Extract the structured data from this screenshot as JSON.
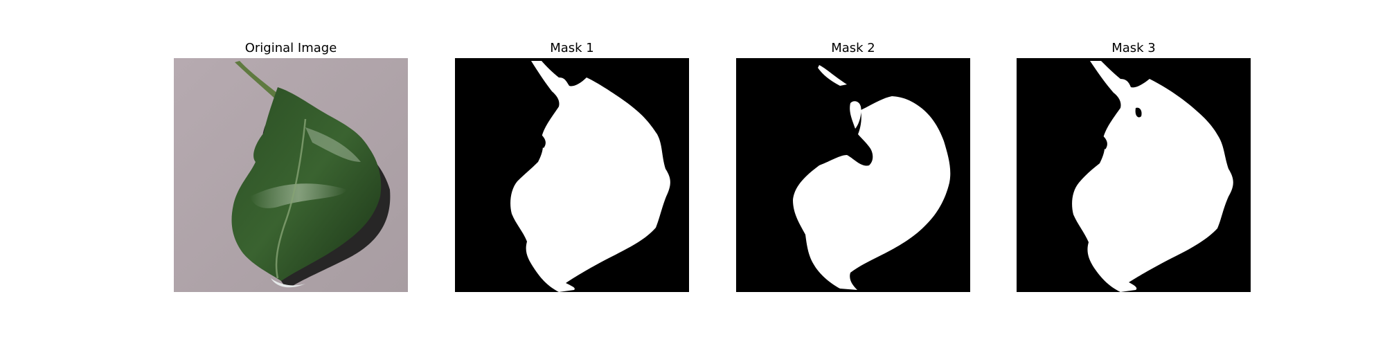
{
  "figure": {
    "panels": [
      {
        "title": "Original Image",
        "kind": "photo"
      },
      {
        "title": "Mask 1",
        "kind": "mask"
      },
      {
        "title": "Mask 2",
        "kind": "mask"
      },
      {
        "title": "Mask 3",
        "kind": "mask"
      }
    ]
  },
  "colors": {
    "background": "#ffffff",
    "mask_background": "#000000",
    "mask_foreground": "#ffffff",
    "photo_background": "#aea3a8",
    "leaf_dark": "#1e3a1a",
    "leaf_mid": "#2e5a26",
    "leaf_light": "#6f8c62",
    "shadow": "#141414"
  }
}
